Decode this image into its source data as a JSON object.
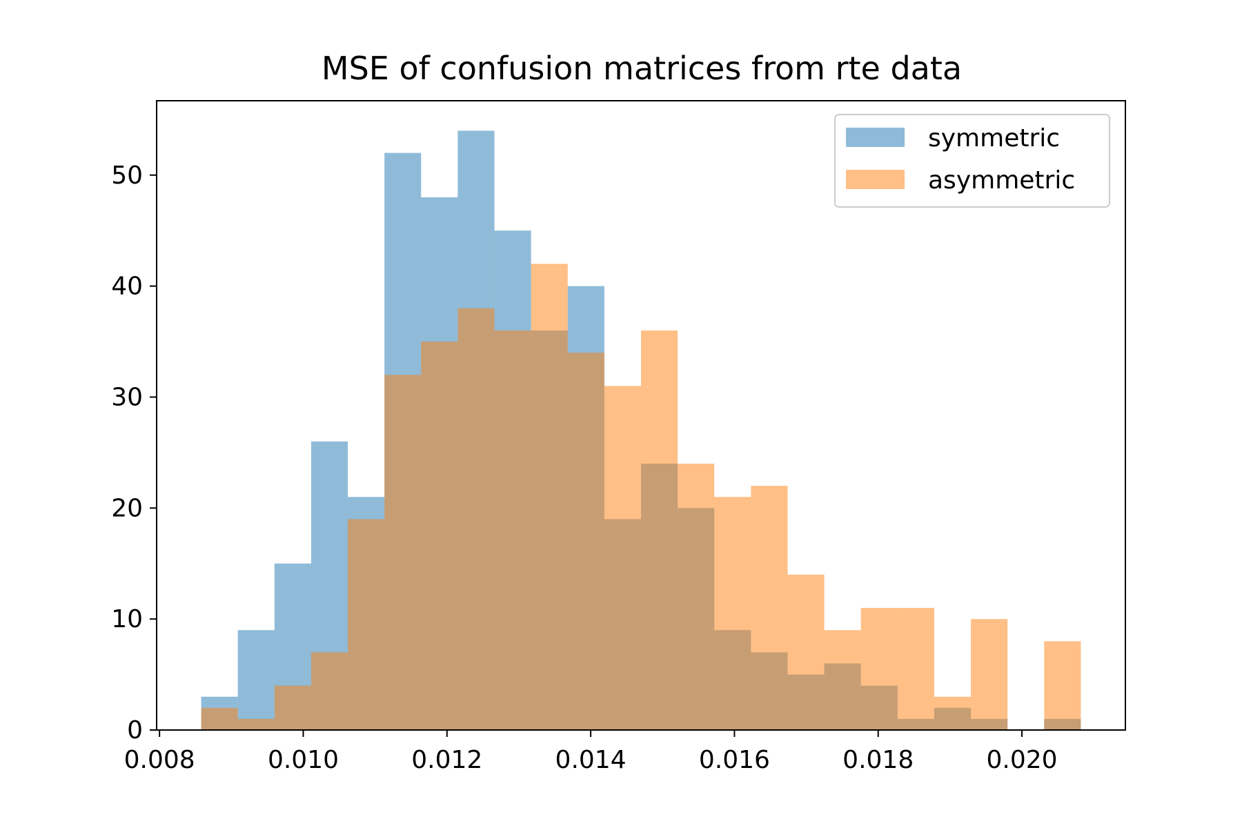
{
  "chart_data": {
    "type": "bar",
    "title": "MSE of confusion matrices from rte data",
    "xlabel": "",
    "ylabel": "",
    "xlim": [
      0.00796,
      0.02144
    ],
    "ylim": [
      0,
      56.7
    ],
    "xticks": [
      0.008,
      0.01,
      0.012,
      0.014,
      0.016,
      0.018,
      0.02
    ],
    "xtick_labels": [
      "0.008",
      "0.010",
      "0.012",
      "0.014",
      "0.016",
      "0.018",
      "0.020"
    ],
    "yticks": [
      0,
      10,
      20,
      30,
      40,
      50
    ],
    "ytick_labels": [
      "0",
      "10",
      "20",
      "30",
      "40",
      "50"
    ],
    "bin_edges": [
      0.00858,
      0.00909,
      0.0096,
      0.01011,
      0.01062,
      0.01113,
      0.01164,
      0.01215,
      0.01266,
      0.01317,
      0.01368,
      0.01419,
      0.0147,
      0.01521,
      0.01572,
      0.01623,
      0.01674,
      0.01725,
      0.01776,
      0.01827,
      0.01878,
      0.01929,
      0.0198,
      0.02031,
      0.02082
    ],
    "grid": false,
    "legend_position": "top-right",
    "series": [
      {
        "name": "symmetric",
        "color": "#1f77b4",
        "alpha": 0.5,
        "values": [
          3,
          9,
          15,
          26,
          21,
          52,
          48,
          54,
          45,
          36,
          40,
          19,
          24,
          20,
          9,
          7,
          5,
          6,
          4,
          1,
          2,
          1,
          0,
          1
        ]
      },
      {
        "name": "asymmetric",
        "color": "#ff7f0e",
        "alpha": 0.5,
        "values": [
          2,
          1,
          4,
          7,
          19,
          32,
          35,
          38,
          36,
          42,
          34,
          31,
          36,
          24,
          21,
          22,
          14,
          9,
          11,
          11,
          3,
          10,
          0,
          8
        ]
      }
    ]
  }
}
